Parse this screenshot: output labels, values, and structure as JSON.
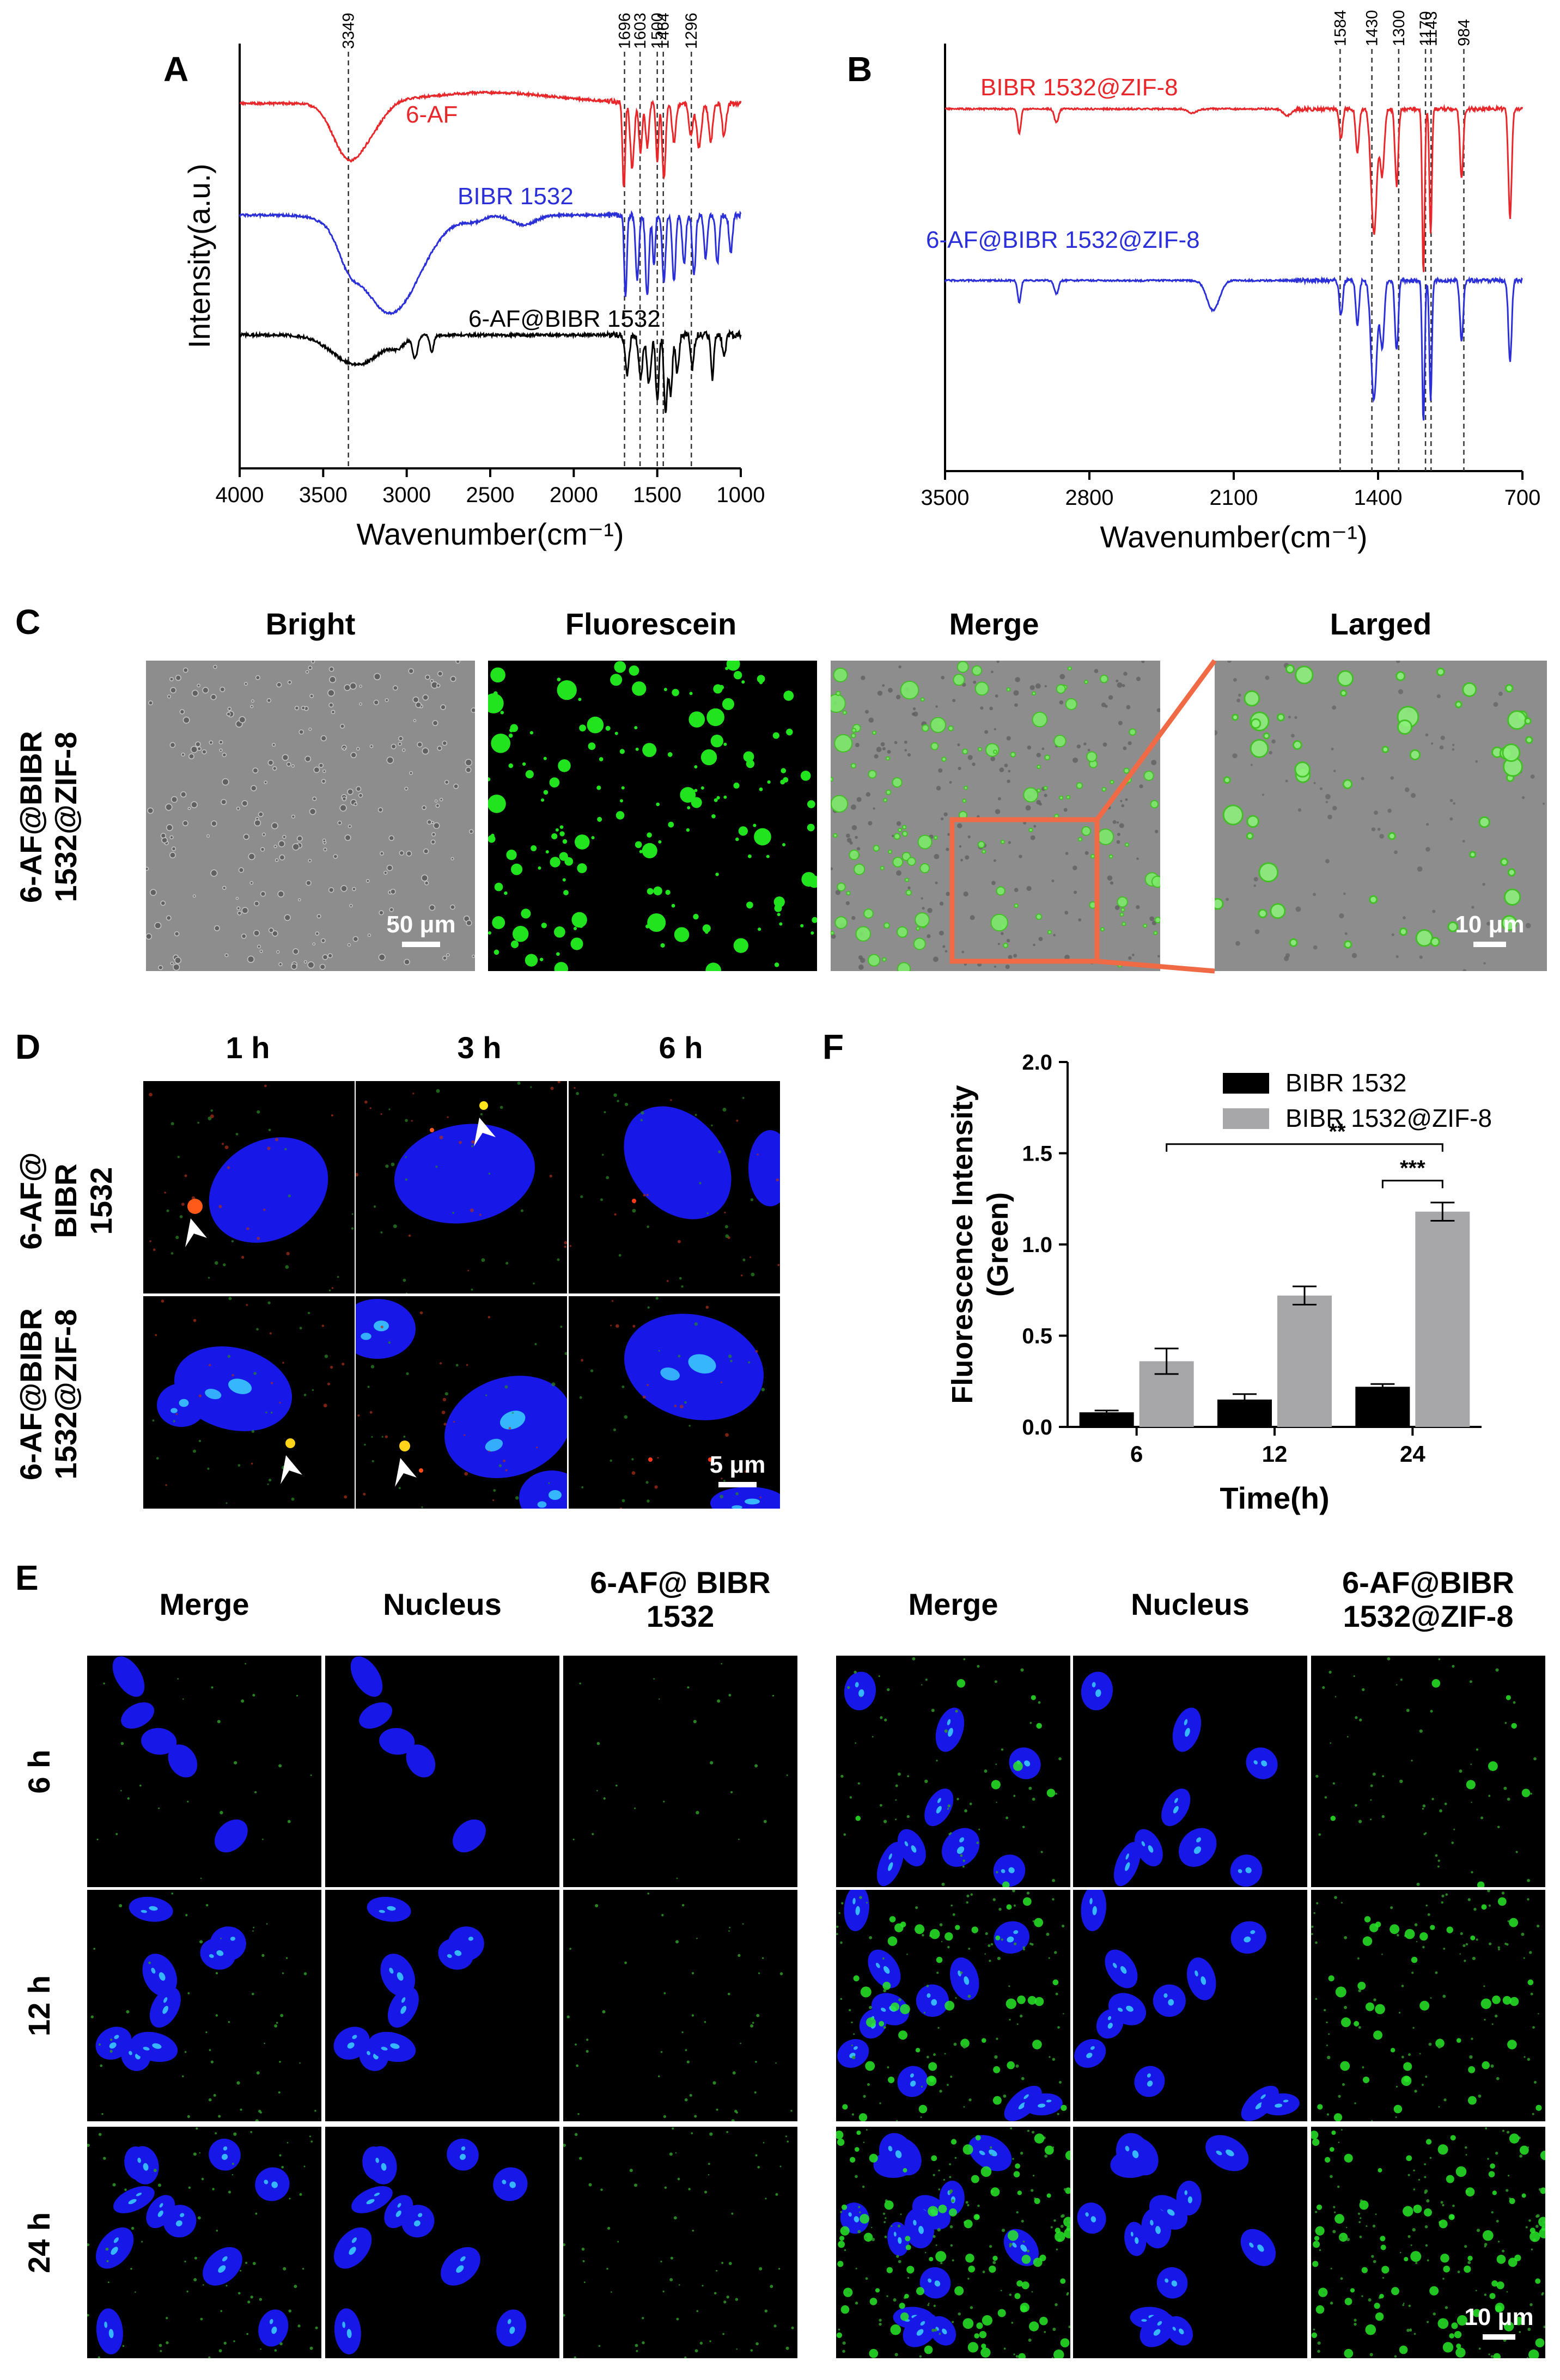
{
  "panels": {
    "A": "A",
    "B": "B",
    "C": "C",
    "D": "D",
    "E": "E",
    "F": "F"
  },
  "panel_c": {
    "row_label": "6-AF@BIBR 1532@ZIF-8",
    "headers": [
      "Bright",
      "Fluorescein",
      "Merge",
      "Larged"
    ],
    "scale_left": "50 μm",
    "scale_right": "10 μm"
  },
  "panel_d": {
    "headers": [
      "1 h",
      "3 h",
      "6 h"
    ],
    "rows": [
      "6-AF@ BIBR 1532",
      "6-AF@BIBR 1532@ZIF-8"
    ],
    "scale": "5 μm"
  },
  "panel_e": {
    "left_headers": [
      "Merge",
      "Nucleus",
      "6-AF@ BIBR 1532"
    ],
    "right_headers": [
      "Merge",
      "Nucleus",
      "6-AF@BIBR 1532@ZIF-8"
    ],
    "rows": [
      "6 h",
      "12 h",
      "24 h"
    ],
    "scale": "10 μm"
  },
  "chart_data": [
    {
      "type": "line",
      "panel": "A",
      "xlabel": "Wavenumber(cm⁻¹)",
      "ylabel": "Intensity(a.u.)",
      "xlim": [
        4000,
        1000
      ],
      "x_ticks": [
        4000,
        3500,
        3000,
        2500,
        2000,
        1500,
        1000
      ],
      "series": [
        {
          "name": "6-AF",
          "color": "#e8272b"
        },
        {
          "name": "BIBR 1532",
          "color": "#2a2fd8"
        },
        {
          "name": "6-AF@BIBR 1532",
          "color": "#000000"
        }
      ],
      "reference_lines": [
        3349,
        1696,
        1603,
        1500,
        1464,
        1296
      ]
    },
    {
      "type": "line",
      "panel": "B",
      "xlabel": "Wavenumber(cm⁻¹)",
      "xlim": [
        3500,
        700
      ],
      "x_ticks": [
        3500,
        2800,
        2100,
        1400,
        700
      ],
      "series": [
        {
          "name": "BIBR 1532@ZIF-8",
          "color": "#e8272b"
        },
        {
          "name": "6-AF@BIBR 1532@ZIF-8",
          "color": "#2a2fd8"
        }
      ],
      "reference_lines": [
        1584,
        1430,
        1300,
        1170,
        1143,
        984
      ]
    },
    {
      "type": "bar",
      "panel": "F",
      "categories": [
        "6",
        "12",
        "24"
      ],
      "xlabel": "Time(h)",
      "ylabel": "Fluorescence Intensity (Green)",
      "ylim": [
        0,
        2.0
      ],
      "y_ticks": [
        "0.0",
        "0.5",
        "1.0",
        "1.5",
        "2.0"
      ],
      "legend": "top-right",
      "series": [
        {
          "name": "BIBR 1532",
          "color": "#000000",
          "values": [
            0.08,
            0.15,
            0.22
          ],
          "errors": [
            0.01,
            0.03,
            0.015
          ]
        },
        {
          "name": "BIBR 1532@ZIF-8",
          "color": "#a7a7aa",
          "values": [
            0.36,
            0.72,
            1.18
          ],
          "errors": [
            0.07,
            0.05,
            0.05
          ]
        }
      ],
      "significance": [
        {
          "label": "**"
        },
        {
          "label": "***"
        }
      ]
    }
  ]
}
